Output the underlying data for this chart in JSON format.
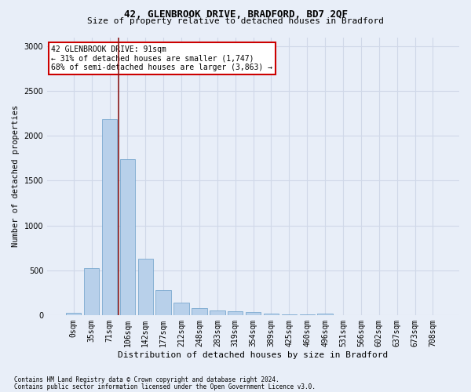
{
  "title1": "42, GLENBROOK DRIVE, BRADFORD, BD7 2QF",
  "title2": "Size of property relative to detached houses in Bradford",
  "xlabel": "Distribution of detached houses by size in Bradford",
  "ylabel": "Number of detached properties",
  "footer1": "Contains HM Land Registry data © Crown copyright and database right 2024.",
  "footer2": "Contains public sector information licensed under the Open Government Licence v3.0.",
  "bar_labels": [
    "0sqm",
    "35sqm",
    "71sqm",
    "106sqm",
    "142sqm",
    "177sqm",
    "212sqm",
    "248sqm",
    "283sqm",
    "319sqm",
    "354sqm",
    "389sqm",
    "425sqm",
    "460sqm",
    "496sqm",
    "531sqm",
    "566sqm",
    "602sqm",
    "637sqm",
    "673sqm",
    "708sqm"
  ],
  "bar_values": [
    25,
    520,
    2190,
    1740,
    630,
    275,
    140,
    75,
    55,
    40,
    30,
    20,
    10,
    5,
    15,
    2,
    2,
    2,
    2,
    2,
    2
  ],
  "bar_color": "#b8d0ea",
  "bar_edge_color": "#6a9ec8",
  "vline_x": 2.5,
  "vline_color": "#8b1a1a",
  "annotation_text": "42 GLENBROOK DRIVE: 91sqm\n← 31% of detached houses are smaller (1,747)\n68% of semi-detached houses are larger (3,863) →",
  "annotation_box_color": "#ffffff",
  "annotation_border_color": "#cc0000",
  "ylim": [
    0,
    3100
  ],
  "yticks": [
    0,
    500,
    1000,
    1500,
    2000,
    2500,
    3000
  ],
  "grid_color": "#d0d8e8",
  "bg_color": "#e8eef8",
  "title1_fontsize": 9,
  "title2_fontsize": 8,
  "ylabel_fontsize": 7.5,
  "xlabel_fontsize": 8,
  "tick_fontsize": 7,
  "annotation_fontsize": 7,
  "footer_fontsize": 5.5
}
